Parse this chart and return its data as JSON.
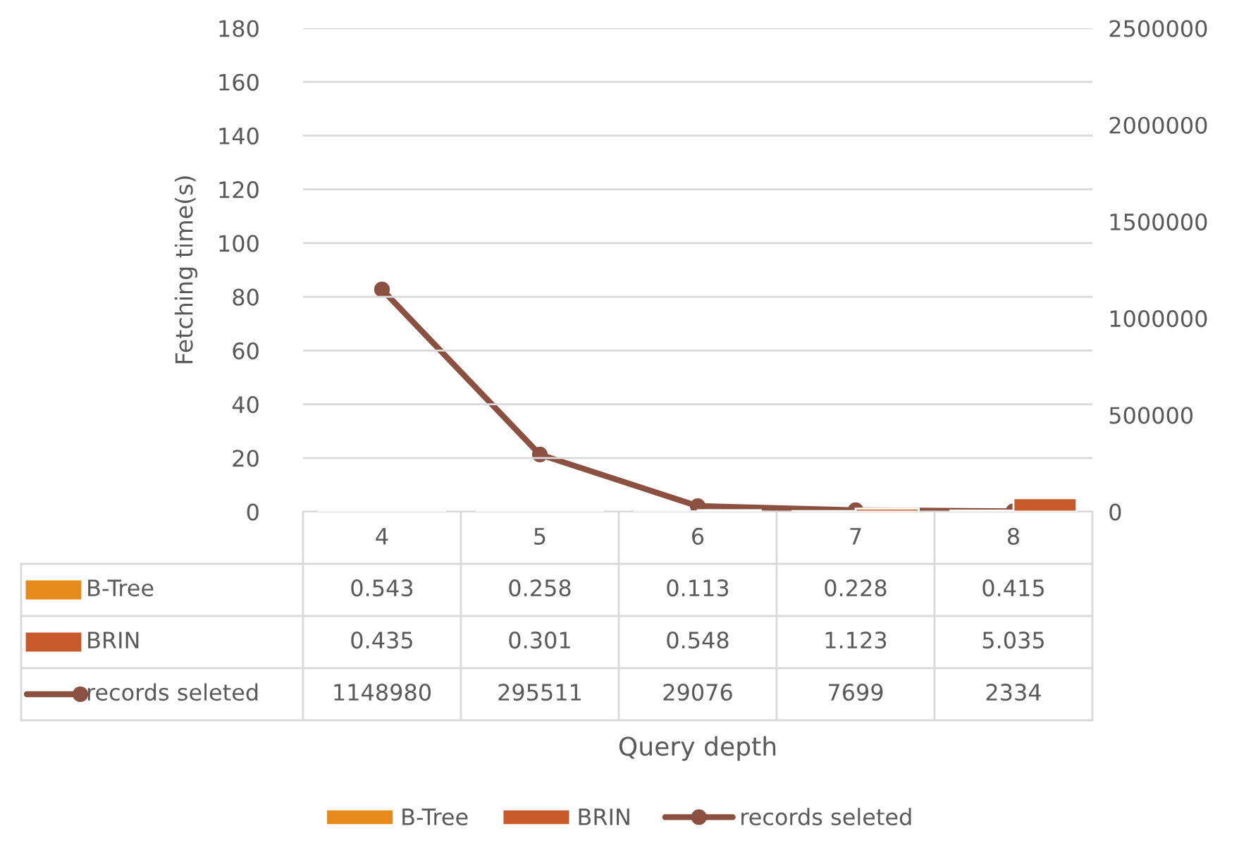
{
  "chart_data": {
    "type": "bar",
    "annotations": [
      "Query depth"
    ],
    "ylabel": "Fetching time(s)",
    "categories": [
      "4",
      "5",
      "6",
      "7",
      "8"
    ],
    "series": [
      {
        "name": "B-Tree",
        "color": "#e8891c",
        "values": [
          0.543,
          0.258,
          0.113,
          0.228,
          0.415
        ]
      },
      {
        "name": "BRIN",
        "color": "#c65a2a",
        "values": [
          0.435,
          0.301,
          0.548,
          1.123,
          5.035
        ]
      },
      {
        "name": "records seleted",
        "type": "line",
        "axis": "y2",
        "color": "#8c5040",
        "marker": "circle",
        "values": [
          1148980,
          295511,
          29076,
          7699,
          2334
        ]
      }
    ],
    "ylim": [
      0,
      180
    ],
    "yticks": [
      0,
      20,
      40,
      60,
      80,
      100,
      120,
      140,
      160,
      180
    ],
    "y2lim": [
      0,
      2500000
    ],
    "y2ticks": [
      0,
      500000,
      1000000,
      1500000,
      2000000,
      2500000
    ],
    "grid": "y",
    "legend": "bottom",
    "data_labels": true
  }
}
